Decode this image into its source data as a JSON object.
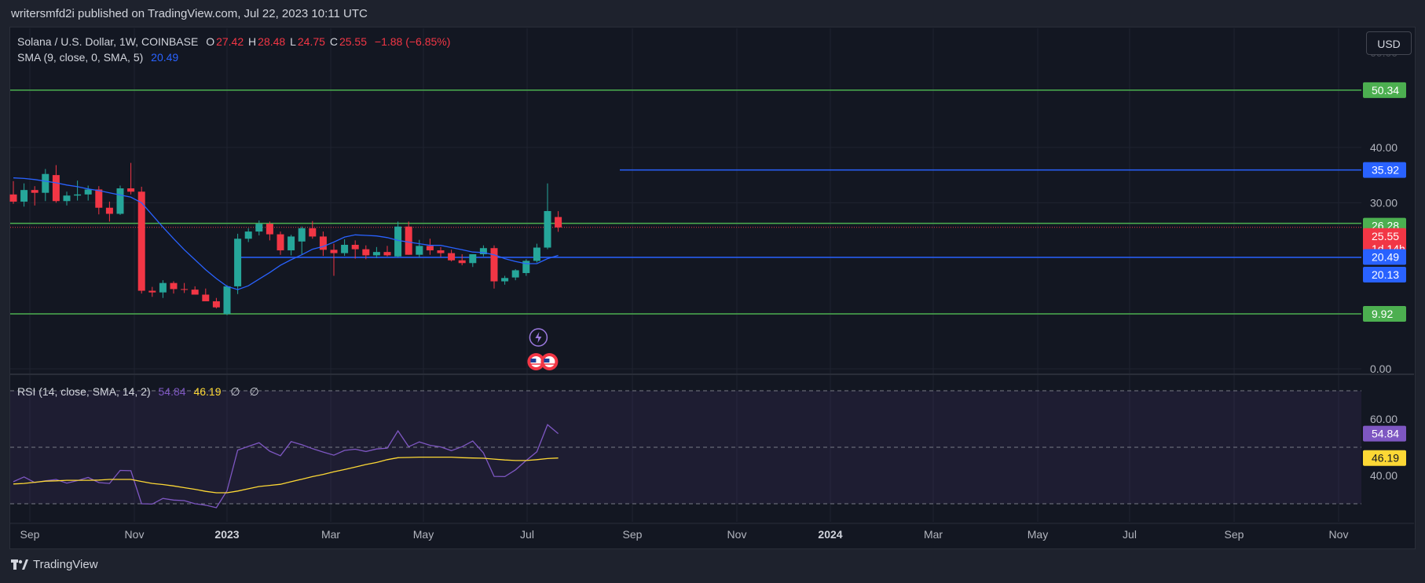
{
  "header": {
    "published_by": "writersmfd2i published on TradingView.com, Jul 22, 2023 10:11 UTC"
  },
  "toolbar": {
    "currency_button": "USD"
  },
  "legend_main": {
    "symbol": "Solana / U.S. Dollar, 1W, COINBASE",
    "o_label": "O",
    "o_value": "27.42",
    "h_label": "H",
    "h_value": "28.48",
    "l_label": "L",
    "l_value": "24.75",
    "c_label": "C",
    "c_value": "25.55",
    "change": "−1.88 (−6.85%)"
  },
  "legend_sma": {
    "label": "SMA (9, close, 0, SMA, 5)",
    "value": "20.49"
  },
  "legend_rsi": {
    "label": "RSI (14, close, SMA, 14, 2)",
    "rsi_value": "54.84",
    "sma_value": "46.19",
    "extra1": "∅",
    "extra2": "∅"
  },
  "footer": {
    "brand": "TradingView"
  },
  "colors": {
    "up": "#26a69a",
    "down": "#f23645",
    "sma": "#2962ff",
    "support": "#4caf50",
    "resistance_blue": "#2962ff",
    "rsi": "#7e57c2",
    "rsi_sma": "#fdd835",
    "bg": "#131722",
    "grid": "#1f2330",
    "text": "#b2b5be"
  },
  "chart_data": [
    {
      "type": "candlestick",
      "title": "Solana / U.S. Dollar, 1W, COINBASE",
      "y_axis_ticks": [
        "40.00",
        "30.00",
        "0.00"
      ],
      "x_axis_ticks": [
        "Sep",
        "Nov",
        "2023",
        "Mar",
        "May",
        "Jul",
        "Sep",
        "Nov",
        "2024",
        "Mar",
        "May",
        "Jul",
        "Sep",
        "Nov"
      ],
      "price_labels": [
        {
          "value": "50.34",
          "color": "#4caf50"
        },
        {
          "value": "35.92",
          "color": "#2962ff"
        },
        {
          "value": "26.28",
          "color": "#4caf50"
        },
        {
          "value": "25.55",
          "color": "#f23645",
          "sub": "1d 14h"
        },
        {
          "value": "20.49",
          "color": "#2962ff"
        },
        {
          "value": "20.13",
          "color": "#2962ff"
        },
        {
          "value": "9.92",
          "color": "#4caf50"
        }
      ],
      "horizontal_lines": [
        {
          "value": 50.34,
          "color": "#4caf50",
          "from": "start"
        },
        {
          "value": 35.92,
          "color": "#2962ff",
          "from": "2023-08-25"
        },
        {
          "value": 26.28,
          "color": "#4caf50",
          "from": "start"
        },
        {
          "value": 20.13,
          "color": "#2962ff",
          "from": "2023-01-13"
        },
        {
          "value": 9.92,
          "color": "#4caf50",
          "from": "start"
        }
      ],
      "current_price": 25.55,
      "candles": [
        {
          "o": 31.5,
          "h": 33.9,
          "l": 29.8,
          "c": 30.2
        },
        {
          "o": 30.2,
          "h": 33.5,
          "l": 29.3,
          "c": 32.3
        },
        {
          "o": 32.3,
          "h": 33.0,
          "l": 29.5,
          "c": 31.8
        },
        {
          "o": 31.8,
          "h": 36.1,
          "l": 30.3,
          "c": 35.2
        },
        {
          "o": 35.0,
          "h": 36.8,
          "l": 30.0,
          "c": 30.3
        },
        {
          "o": 30.3,
          "h": 32.0,
          "l": 29.5,
          "c": 31.3
        },
        {
          "o": 31.3,
          "h": 34.0,
          "l": 30.4,
          "c": 31.5
        },
        {
          "o": 31.5,
          "h": 33.1,
          "l": 30.4,
          "c": 32.4
        },
        {
          "o": 32.4,
          "h": 33.0,
          "l": 27.9,
          "c": 29.1
        },
        {
          "o": 29.1,
          "h": 30.2,
          "l": 26.6,
          "c": 28.0
        },
        {
          "o": 28.0,
          "h": 33.1,
          "l": 27.8,
          "c": 32.6
        },
        {
          "o": 32.6,
          "h": 37.2,
          "l": 31.5,
          "c": 32.0
        },
        {
          "o": 32.0,
          "h": 32.9,
          "l": 13.6,
          "c": 14.1
        },
        {
          "o": 14.1,
          "h": 14.8,
          "l": 13.0,
          "c": 13.8
        },
        {
          "o": 13.8,
          "h": 16.0,
          "l": 12.8,
          "c": 15.5
        },
        {
          "o": 15.5,
          "h": 15.8,
          "l": 13.6,
          "c": 14.4
        },
        {
          "o": 14.4,
          "h": 15.5,
          "l": 13.7,
          "c": 14.3
        },
        {
          "o": 14.3,
          "h": 14.9,
          "l": 13.5,
          "c": 13.4
        },
        {
          "o": 13.4,
          "h": 14.5,
          "l": 12.5,
          "c": 12.2
        },
        {
          "o": 12.2,
          "h": 12.8,
          "l": 10.9,
          "c": 11.1
        },
        {
          "o": 9.9,
          "h": 15.1,
          "l": 9.7,
          "c": 14.9
        },
        {
          "o": 14.9,
          "h": 24.4,
          "l": 13.5,
          "c": 23.5
        },
        {
          "o": 23.5,
          "h": 25.4,
          "l": 22.9,
          "c": 24.8
        },
        {
          "o": 24.8,
          "h": 26.8,
          "l": 24.1,
          "c": 26.2
        },
        {
          "o": 26.2,
          "h": 26.6,
          "l": 23.2,
          "c": 24.3
        },
        {
          "o": 24.3,
          "h": 24.8,
          "l": 20.6,
          "c": 21.4
        },
        {
          "o": 21.4,
          "h": 24.2,
          "l": 20.5,
          "c": 23.9
        },
        {
          "o": 23.0,
          "h": 25.7,
          "l": 20.7,
          "c": 25.4
        },
        {
          "o": 25.4,
          "h": 26.7,
          "l": 23.5,
          "c": 23.9
        },
        {
          "o": 23.9,
          "h": 24.8,
          "l": 20.4,
          "c": 21.5
        },
        {
          "o": 21.5,
          "h": 22.6,
          "l": 16.8,
          "c": 20.9
        },
        {
          "o": 20.9,
          "h": 23.4,
          "l": 20.4,
          "c": 22.4
        },
        {
          "o": 22.4,
          "h": 23.2,
          "l": 19.9,
          "c": 21.6
        },
        {
          "o": 21.6,
          "h": 22.3,
          "l": 19.8,
          "c": 20.5
        },
        {
          "o": 20.5,
          "h": 22.0,
          "l": 20.0,
          "c": 21.1
        },
        {
          "o": 21.1,
          "h": 22.2,
          "l": 20.3,
          "c": 20.5
        },
        {
          "o": 20.3,
          "h": 26.6,
          "l": 20.1,
          "c": 25.7
        },
        {
          "o": 25.7,
          "h": 26.6,
          "l": 20.6,
          "c": 20.6
        },
        {
          "o": 20.6,
          "h": 23.3,
          "l": 20.1,
          "c": 22.2
        },
        {
          "o": 22.2,
          "h": 23.5,
          "l": 20.6,
          "c": 21.4
        },
        {
          "o": 21.4,
          "h": 22.0,
          "l": 20.2,
          "c": 20.9
        },
        {
          "o": 20.9,
          "h": 21.5,
          "l": 19.4,
          "c": 19.6
        },
        {
          "o": 19.6,
          "h": 20.7,
          "l": 18.7,
          "c": 19.1
        },
        {
          "o": 19.1,
          "h": 20.5,
          "l": 18.4,
          "c": 20.7
        },
        {
          "o": 20.7,
          "h": 22.3,
          "l": 20.3,
          "c": 21.8
        },
        {
          "o": 21.8,
          "h": 22.3,
          "l": 14.5,
          "c": 15.8
        },
        {
          "o": 15.8,
          "h": 16.8,
          "l": 15.2,
          "c": 16.4
        },
        {
          "o": 16.5,
          "h": 18.0,
          "l": 16.0,
          "c": 17.8
        },
        {
          "o": 17.3,
          "h": 19.8,
          "l": 16.8,
          "c": 19.5
        },
        {
          "o": 19.5,
          "h": 22.6,
          "l": 19.2,
          "c": 21.9
        },
        {
          "o": 21.9,
          "h": 33.5,
          "l": 21.6,
          "c": 28.5
        },
        {
          "o": 27.42,
          "h": 28.48,
          "l": 24.75,
          "c": 25.55
        }
      ],
      "sma": [
        34.5,
        34.4,
        34.2,
        33.9,
        33.6,
        33.2,
        32.9,
        32.5,
        32.2,
        31.8,
        31.4,
        31.0,
        30.0,
        27.8,
        25.6,
        23.5,
        21.5,
        19.7,
        17.9,
        16.3,
        14.9,
        14.3,
        15.0,
        16.2,
        17.4,
        18.7,
        19.7,
        20.6,
        21.6,
        22.1,
        22.9,
        23.8,
        24.2,
        24.1,
        24.0,
        23.7,
        23.2,
        22.9,
        22.6,
        22.3,
        22.3,
        21.9,
        21.5,
        21.1,
        21.0,
        20.6,
        19.9,
        19.4,
        19.0,
        19.0,
        19.9,
        20.49
      ],
      "y_range": [
        0,
        56
      ]
    },
    {
      "type": "line",
      "title": "RSI (14, close, SMA, 14, 2)",
      "y_axis_ticks": [
        "60.00",
        "40.00"
      ],
      "value_labels": [
        {
          "value": "54.84",
          "color": "#7e57c2"
        },
        {
          "value": "46.19",
          "color": "#fdd835"
        }
      ],
      "bands": [
        70,
        50,
        30
      ],
      "y_range": [
        25,
        75
      ],
      "series": [
        {
          "values": [
            37.8,
            39.5,
            37.5,
            38.1,
            38.6,
            37.3,
            38.2,
            39.3,
            37.5,
            37.2,
            41.8,
            41.7,
            30.0,
            29.9,
            31.9,
            31.3,
            31.1,
            30.0,
            29.5,
            28.6,
            34.6,
            49.0,
            50.3,
            51.6,
            48.6,
            47.0,
            52.0,
            50.9,
            49.5,
            48.3,
            47.2,
            48.9,
            49.3,
            48.5,
            49.4,
            49.7,
            55.8,
            50.2,
            51.9,
            50.7,
            50.1,
            48.8,
            50.2,
            52.2,
            48.0,
            39.7,
            39.6,
            42.0,
            45.3,
            48.4,
            58.0,
            54.84
          ]
        },
        {
          "values": [
            37.0,
            37.2,
            37.6,
            38.0,
            38.1,
            38.3,
            38.3,
            38.3,
            38.4,
            38.6,
            38.6,
            38.6,
            37.9,
            37.2,
            36.8,
            36.3,
            35.7,
            35.1,
            34.4,
            33.9,
            33.9,
            34.5,
            35.3,
            36.1,
            36.5,
            36.9,
            37.8,
            38.7,
            39.6,
            40.4,
            41.3,
            42.1,
            43.0,
            43.9,
            44.6,
            45.6,
            46.3,
            46.4,
            46.5,
            46.5,
            46.5,
            46.5,
            46.3,
            46.2,
            46.1,
            45.8,
            45.5,
            45.3,
            45.3,
            45.6,
            46.0,
            46.19
          ]
        }
      ]
    }
  ]
}
